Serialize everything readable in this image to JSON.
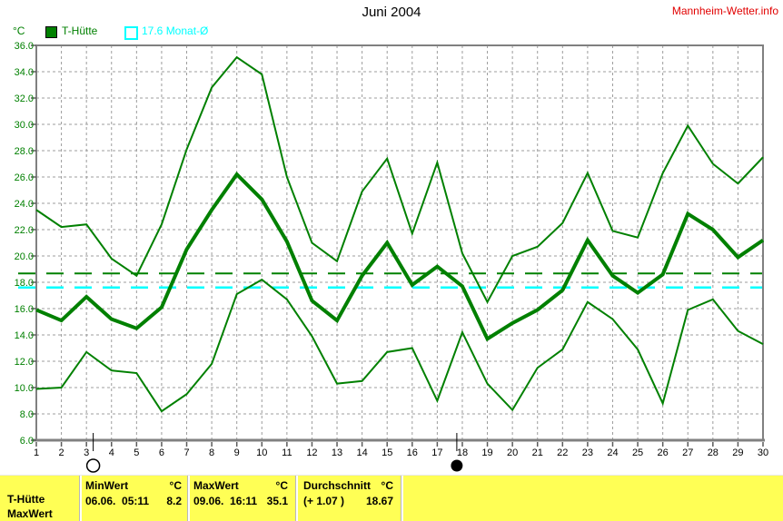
{
  "header": {
    "title": "Juni 2004",
    "site_link": "Mannheim-Wetter.info"
  },
  "legend": {
    "series1_label": "T-Hütte",
    "series2_label": "17.6 Monat-Ø"
  },
  "chart_data": {
    "type": "line",
    "title": "Juni 2004",
    "xlabel": "",
    "ylabel": "°C",
    "ylim": [
      6,
      36
    ],
    "ytick_step": 2,
    "grid": true,
    "x": [
      1,
      2,
      3,
      4,
      5,
      6,
      7,
      8,
      9,
      10,
      11,
      12,
      13,
      14,
      15,
      16,
      17,
      18,
      19,
      20,
      21,
      22,
      23,
      24,
      25,
      26,
      27,
      28,
      29,
      30
    ],
    "series": [
      {
        "name": "T-Hütte Maximum",
        "color": "#008000",
        "width": 2,
        "values": [
          23.5,
          22.2,
          22.4,
          19.8,
          18.5,
          22.4,
          28.1,
          32.8,
          35.1,
          33.8,
          26.0,
          21.0,
          19.6,
          24.9,
          27.4,
          21.7,
          27.1,
          20.2,
          16.5,
          20.0,
          20.7,
          22.5,
          26.3,
          21.9,
          21.4,
          26.3,
          29.9,
          27.0,
          25.5,
          27.5
        ]
      },
      {
        "name": "T-Hütte Mittelwert",
        "color": "#008000",
        "width": 4,
        "values": [
          15.9,
          15.1,
          16.9,
          15.2,
          14.5,
          16.1,
          20.5,
          23.5,
          26.2,
          24.3,
          21.1,
          16.6,
          15.1,
          18.5,
          21.0,
          17.8,
          19.2,
          17.7,
          13.7,
          14.9,
          15.9,
          17.4,
          21.2,
          18.5,
          17.2,
          18.6,
          23.2,
          22.0,
          19.9,
          21.2
        ]
      },
      {
        "name": "T-Hütte Minimum",
        "color": "#008000",
        "width": 2,
        "values": [
          9.9,
          10.0,
          12.7,
          11.3,
          11.1,
          8.2,
          9.5,
          11.8,
          17.1,
          18.2,
          16.7,
          13.9,
          10.3,
          10.5,
          12.7,
          13.0,
          9.0,
          14.2,
          10.3,
          8.3,
          11.5,
          12.9,
          16.5,
          15.2,
          12.9,
          8.8,
          15.9,
          16.7,
          14.3,
          13.3
        ]
      }
    ],
    "reference_lines": [
      {
        "label": "Durchschnitt",
        "value": 18.67,
        "color": "#008000",
        "style": "dashed",
        "width": 2
      },
      {
        "label": "Monat-Ø",
        "value": 17.6,
        "color": "#00ffff",
        "style": "dashed",
        "width": 2.5
      }
    ],
    "moon_markers": [
      {
        "day": 3.27,
        "phase": "full"
      },
      {
        "day": 17.78,
        "phase": "new"
      }
    ],
    "legend_position": "top-left"
  },
  "footer": {
    "series_label": "T-Hütte",
    "series_sublabel": "MaxWert",
    "columns": [
      {
        "header": "MinWert",
        "unit": "°C",
        "detail": "06.06.  05:11",
        "value": "8.2"
      },
      {
        "header": "MaxWert",
        "unit": "°C",
        "detail": "09.06.  16:11",
        "value": "35.1"
      },
      {
        "header": "Durchschnitt",
        "unit": "°C",
        "detail": "(+ 1.07 )",
        "value": "18.67"
      }
    ]
  },
  "colors": {
    "series_green": "#008000",
    "monthly_avg_cyan": "#00ffff",
    "grid_gray": "#9c9c9c",
    "axis_gray": "#808080",
    "tick_dark": "#5a5a5a",
    "link_red": "#e10000",
    "footer_yellow": "#ffff55",
    "axis_label_green": "#008000"
  }
}
